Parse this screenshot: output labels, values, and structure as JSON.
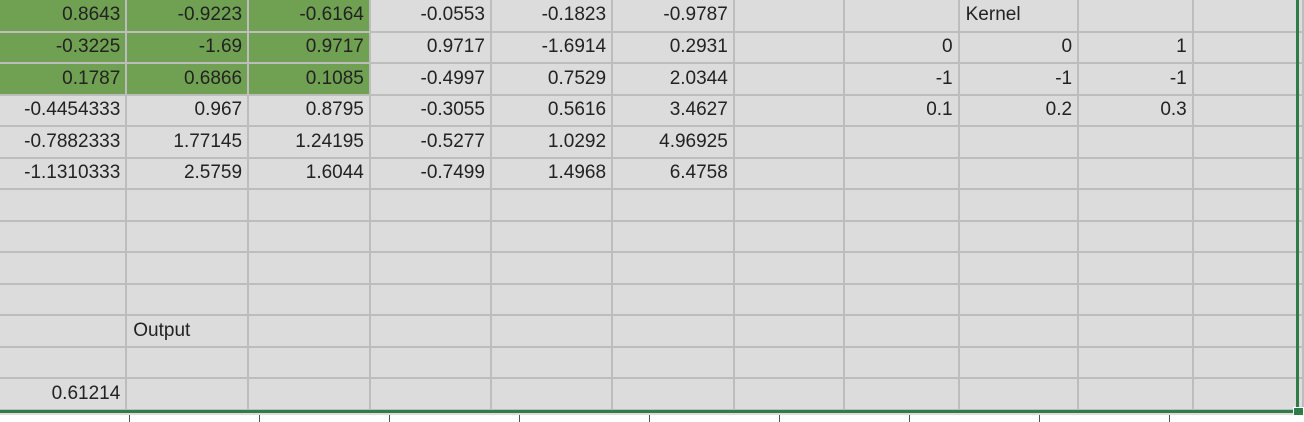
{
  "sheet": {
    "rows": [
      [
        "0.8643",
        "-0.9223",
        "-0.6164",
        "-0.0553",
        "-0.1823",
        "-0.9787",
        "",
        "",
        "Kernel",
        "",
        ""
      ],
      [
        "-0.3225",
        "-1.69",
        "0.9717",
        "0.9717",
        "-1.6914",
        "0.2931",
        "",
        "0",
        "0",
        "1",
        ""
      ],
      [
        "0.1787",
        "0.6866",
        "0.1085",
        "-0.4997",
        "0.7529",
        "2.0344",
        "",
        "-1",
        "-1",
        "-1",
        ""
      ],
      [
        "-0.4454333",
        "0.967",
        "0.8795",
        "-0.3055",
        "0.5616",
        "3.4627",
        "",
        "0.1",
        "0.2",
        "0.3",
        ""
      ],
      [
        "-0.7882333",
        "1.77145",
        "1.24195",
        "-0.5277",
        "1.0292",
        "4.96925",
        "",
        "",
        "",
        "",
        ""
      ],
      [
        "-1.1310333",
        "2.5759",
        "1.6044",
        "-0.7499",
        "1.4968",
        "6.4758",
        "",
        "",
        "",
        "",
        ""
      ],
      [
        "",
        "",
        "",
        "",
        "",
        "",
        "",
        "",
        "",
        "",
        ""
      ],
      [
        "",
        "",
        "",
        "",
        "",
        "",
        "",
        "",
        "",
        "",
        ""
      ],
      [
        "",
        "",
        "",
        "",
        "",
        "",
        "",
        "",
        "",
        "",
        ""
      ],
      [
        "",
        "",
        "",
        "",
        "",
        "",
        "",
        "",
        "",
        "",
        ""
      ],
      [
        "",
        "Output",
        "",
        "",
        "",
        "",
        "",
        "",
        "",
        "",
        ""
      ],
      [
        "",
        "",
        "",
        "",
        "",
        "",
        "",
        "",
        "",
        "",
        ""
      ],
      [
        "0.61214",
        "",
        "",
        "",
        "",
        "",
        "",
        "",
        "",
        "",
        ""
      ]
    ],
    "text_cells": [
      "0-8",
      "10-1"
    ],
    "highlight_cells": [
      "0-0",
      "0-1",
      "0-2",
      "1-0",
      "1-1",
      "1-2",
      "2-0",
      "2-1",
      "2-2"
    ],
    "highlight_color": "#70a152",
    "selection_color": "#2e7d47",
    "grid_color": "#bdbdbd"
  }
}
